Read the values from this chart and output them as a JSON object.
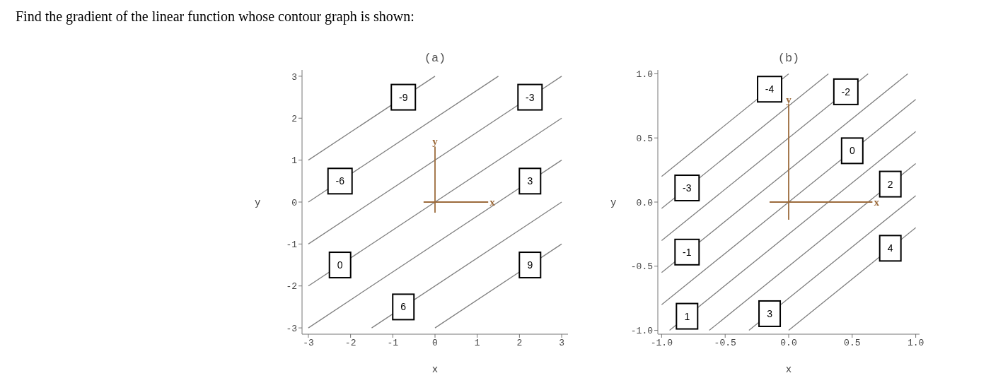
{
  "chart_data": [
    {
      "type": "line",
      "title": "Find the gradient of the linear function whose contour graph is shown:",
      "subtitle": "(a)",
      "xlabel": "x",
      "ylabel": "y",
      "xlim": [
        -3.15,
        3.15
      ],
      "ylim": [
        -3.15,
        3.15
      ],
      "xticks": [
        -3,
        -2,
        -1,
        0,
        1,
        2,
        3
      ],
      "yticks": [
        -3,
        -2,
        -1,
        0,
        1,
        2,
        3
      ],
      "series": [
        {
          "color": "#808080",
          "x": [
            -3,
            0
          ],
          "values": [
            1,
            3
          ]
        },
        {
          "color": "#808080",
          "x": [
            -3,
            1.5
          ],
          "values": [
            0,
            3
          ]
        },
        {
          "color": "#808080",
          "x": [
            -3,
            3
          ],
          "values": [
            -1,
            3
          ]
        },
        {
          "color": "#808080",
          "x": [
            -3,
            3
          ],
          "values": [
            -2,
            2
          ]
        },
        {
          "color": "#808080",
          "x": [
            -3,
            3
          ],
          "values": [
            -3,
            1
          ]
        },
        {
          "color": "#808080",
          "x": [
            -1.5,
            3
          ],
          "values": [
            -3,
            0
          ]
        },
        {
          "color": "#808080",
          "x": [
            0,
            3
          ],
          "values": [
            -3,
            -1
          ]
        }
      ],
      "annotations": [
        {
          "text": "-9",
          "x": -0.75,
          "y": 2.5
        },
        {
          "text": "-3",
          "x": 2.25,
          "y": 2.5
        },
        {
          "text": "-6",
          "x": -2.25,
          "y": 0.5
        },
        {
          "text": "3",
          "x": 2.25,
          "y": 0.5
        },
        {
          "text": "0",
          "x": -2.25,
          "y": -1.5
        },
        {
          "text": "9",
          "x": 2.25,
          "y": -1.5
        },
        {
          "text": "6",
          "x": -0.75,
          "y": -2.5
        },
        "x",
        "y"
      ]
    },
    {
      "type": "line",
      "title": "(b)",
      "xlabel": "x",
      "ylabel": "y",
      "xlim": [
        -1.03,
        1.03
      ],
      "ylim": [
        -1.03,
        1.03
      ],
      "xticks": [
        {
          "value": -1,
          "label": "-1.0"
        },
        {
          "value": -0.5,
          "label": "-0.5"
        },
        {
          "value": 0,
          "label": "0.0"
        },
        {
          "value": 0.5,
          "label": "0.5"
        },
        {
          "value": 1,
          "label": "1.0"
        }
      ],
      "yticks": [
        {
          "value": -1,
          "label": "-1.0"
        },
        {
          "value": -0.5,
          "label": "-0.5"
        },
        {
          "value": 0,
          "label": "0.0"
        },
        {
          "value": 0.5,
          "label": "0.5"
        },
        {
          "value": 1,
          "label": "1.0"
        }
      ],
      "series": [
        {
          "color": "#808080",
          "x": [
            -1,
            0
          ],
          "values": [
            0.2,
            1
          ]
        },
        {
          "color": "#808080",
          "x": [
            -1,
            0.3125
          ],
          "values": [
            -0.05,
            1
          ]
        },
        {
          "color": "#808080",
          "x": [
            -1,
            0.625
          ],
          "values": [
            -0.3,
            1
          ]
        },
        {
          "color": "#808080",
          "x": [
            -1,
            0.9375
          ],
          "values": [
            -0.55,
            1
          ]
        },
        {
          "color": "#808080",
          "x": [
            -1,
            1
          ],
          "values": [
            -0.8,
            0.8
          ]
        },
        {
          "color": "#808080",
          "x": [
            -0.9375,
            1
          ],
          "values": [
            -1,
            0.55
          ]
        },
        {
          "color": "#808080",
          "x": [
            -0.625,
            1
          ],
          "values": [
            -1,
            0.3
          ]
        },
        {
          "color": "#808080",
          "x": [
            -0.3125,
            1
          ],
          "values": [
            -1,
            0.05
          ]
        },
        {
          "color": "#808080",
          "x": [
            0,
            1
          ],
          "values": [
            -1,
            -0.2
          ]
        }
      ],
      "annotations": [
        {
          "text": "-4",
          "x": -0.15,
          "y": 0.88
        },
        {
          "text": "-2",
          "x": 0.45,
          "y": 0.86
        },
        {
          "text": "0",
          "x": 0.5,
          "y": 0.4
        },
        {
          "text": "2",
          "x": 0.8,
          "y": 0.14
        },
        {
          "text": "-3",
          "x": -0.8,
          "y": 0.11
        },
        {
          "text": "4",
          "x": 0.8,
          "y": -0.36
        },
        {
          "text": "-1",
          "x": -0.8,
          "y": -0.39
        },
        {
          "text": "1",
          "x": -0.8,
          "y": -0.89
        },
        {
          "text": "3",
          "x": -0.15,
          "y": -0.87
        },
        "x",
        "y"
      ]
    }
  ]
}
